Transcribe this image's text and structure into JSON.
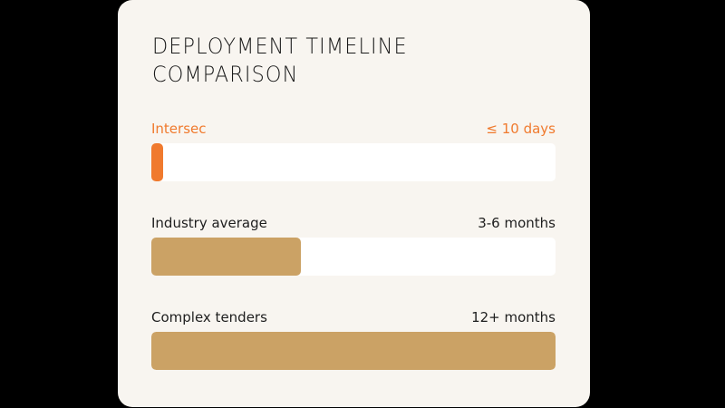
{
  "card": {
    "title_line1": "DEPLOYMENT TIMELINE",
    "title_line2": "COMPARISON"
  },
  "colors": {
    "accent": "#f07a2e",
    "bar": "#cba265",
    "track": "#ffffff",
    "card_bg": "#f8f5f0",
    "page_bg": "#000000"
  },
  "chart_data": {
    "type": "bar",
    "orientation": "horizontal",
    "title": "DEPLOYMENT TIMELINE COMPARISON",
    "categories": [
      "Intersec",
      "Industry average",
      "Complex tenders"
    ],
    "value_labels": [
      "≤ 10 days",
      "3-6 months",
      "12+ months"
    ],
    "values_relative_percent": [
      3,
      37,
      100
    ],
    "highlight": "Intersec",
    "xlabel": "",
    "ylabel": "",
    "grid": false,
    "legend": "none"
  },
  "rows": [
    {
      "label": "Intersec",
      "value": "≤ 10 days",
      "fill_pct": 3,
      "color": "#f07a2e"
    },
    {
      "label": "Industry average",
      "value": "3-6 months",
      "fill_pct": 37,
      "color": "#cba265"
    },
    {
      "label": "Complex tenders",
      "value": "12+ months",
      "fill_pct": 100,
      "color": "#cba265"
    }
  ]
}
